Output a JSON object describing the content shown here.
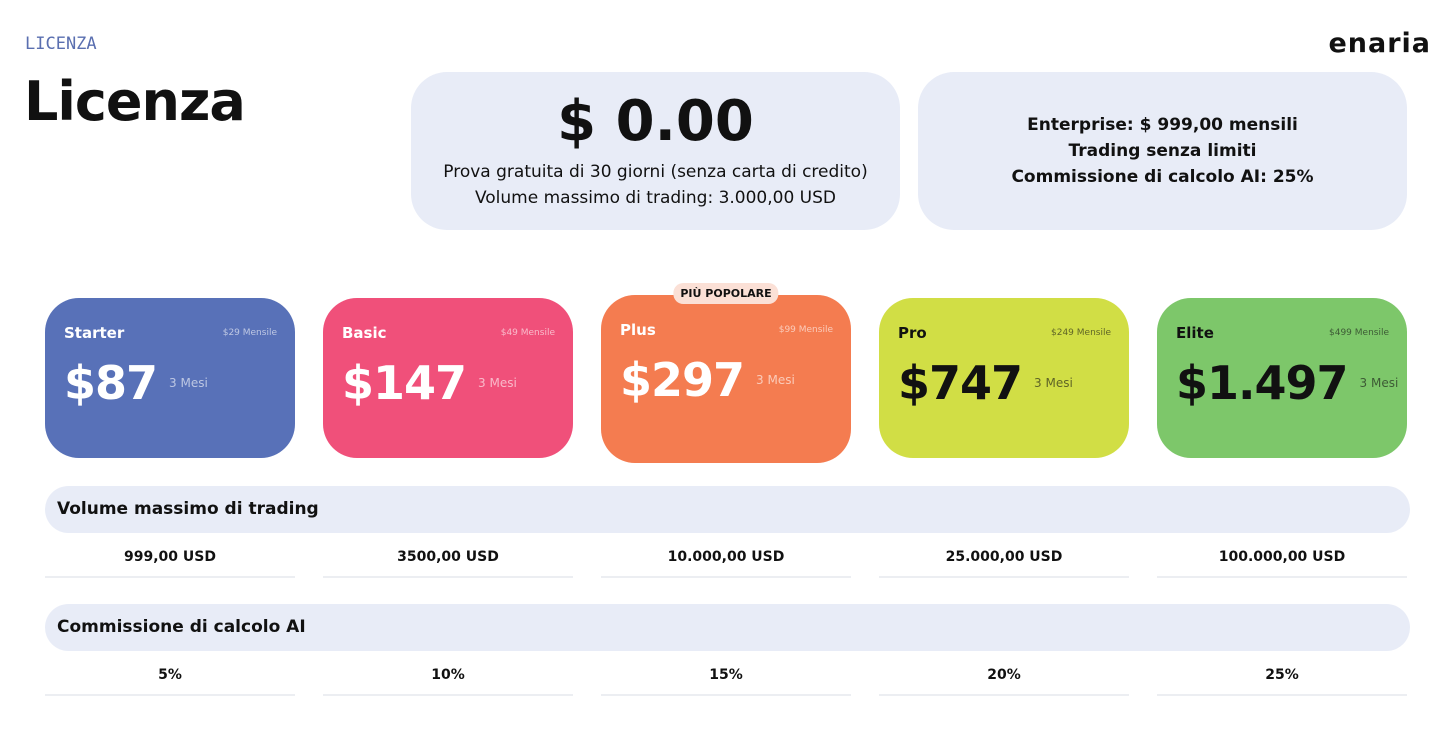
{
  "header": {
    "eyebrow": "LICENZA",
    "title": "Licenza",
    "logo": "enaria"
  },
  "trial": {
    "price": "$ 0.00",
    "lines": [
      "Prova gratuita di 30 giorni (senza carta di credito)",
      "Volume massimo di trading: 3.000,00 USD"
    ]
  },
  "enterprise": {
    "lines": [
      "Enterprise: $ 999,00 mensili",
      "Trading senza limiti",
      "Commissione di calcolo AI: 25%"
    ]
  },
  "plans": [
    {
      "name": "Starter",
      "monthly": "$29 Mensile",
      "price": "$87",
      "period": "3 Mesi"
    },
    {
      "name": "Basic",
      "monthly": "$49 Mensile",
      "price": "$147",
      "period": "3 Mesi"
    },
    {
      "name": "Plus",
      "monthly": "$99 Mensile",
      "price": "$297",
      "period": "3 Mesi",
      "badge": "PIÙ POPOLARE"
    },
    {
      "name": "Pro",
      "monthly": "$249 Mensile",
      "price": "$747",
      "period": "3 Mesi"
    },
    {
      "name": "Elite",
      "monthly": "$499 Mensile",
      "price": "$1.497",
      "period": "3 Mesi"
    }
  ],
  "tables": [
    {
      "title": "Volume massimo di trading",
      "values": [
        "999,00 USD",
        "3500,00 USD",
        "10.000,00 USD",
        "25.000,00 USD",
        "100.000,00 USD"
      ]
    },
    {
      "title": "Commissione di calcolo AI",
      "values": [
        "5%",
        "10%",
        "15%",
        "20%",
        "25%"
      ]
    }
  ]
}
